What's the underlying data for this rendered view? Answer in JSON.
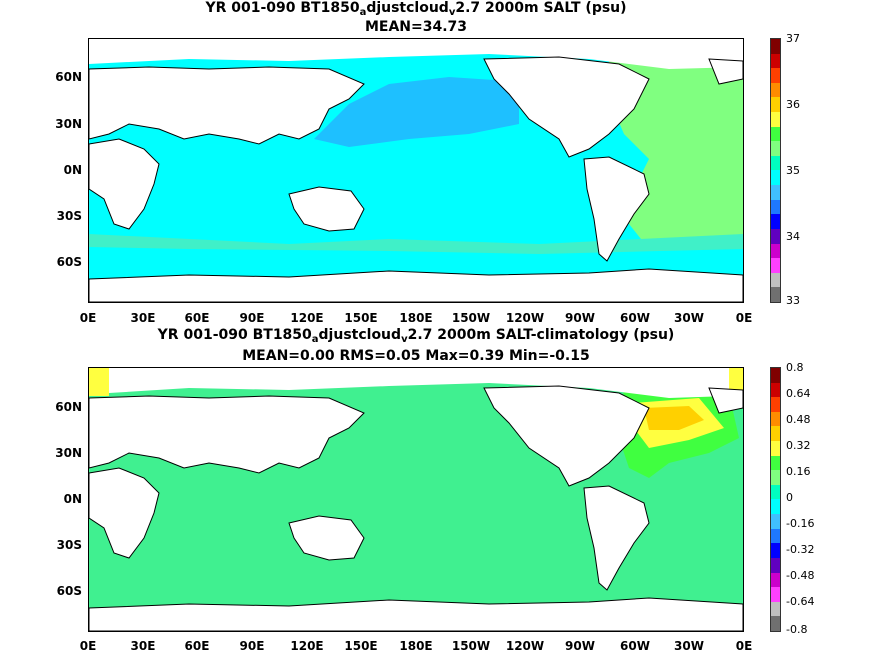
{
  "panels": [
    {
      "title_parts": [
        "YR 001-090 BT1850",
        "a",
        "djustcloud",
        "v",
        "2.7 2000m SALT (psu)"
      ],
      "subtitle": "MEAN=34.73",
      "colorbar_labels": [
        "37",
        "36",
        "35",
        "34",
        "33"
      ],
      "colors": {
        "ocean_main": "#00ffff",
        "ocean_north_pacific": "#1ec0ff",
        "ocean_atlantic": "#80ff80",
        "ocean_southern_band": "#00ffd0"
      }
    },
    {
      "title_parts": [
        "YR 001-090 BT1850",
        "a",
        "djustcloud",
        "v",
        "2.7 2000m SALT-climatology (psu)"
      ],
      "subtitle": "MEAN=0.00   RMS=0.05   Max=0.39   Min=-0.15",
      "colorbar_labels": [
        "0.8",
        "0.64",
        "0.48",
        "0.32",
        "0.16",
        "0",
        "-0.16",
        "-0.32",
        "-0.48",
        "-0.64",
        "-0.8"
      ],
      "colors": {
        "ocean_main": "#40f090",
        "ocean_positive": "#40ff40",
        "ocean_high": "#ffd700",
        "ocean_very_high": "#ffa500"
      }
    }
  ],
  "axes": {
    "y_ticks": [
      "60N",
      "30N",
      "0N",
      "30S",
      "60S"
    ],
    "x_ticks": [
      "0E",
      "30E",
      "60E",
      "90E",
      "120E",
      "150E",
      "180E",
      "150W",
      "120W",
      "90W",
      "60W",
      "30W",
      "0E"
    ]
  },
  "colorbar_palette": [
    "#7f0000",
    "#cc0000",
    "#ff4000",
    "#ff8c00",
    "#ffd000",
    "#ffff40",
    "#40ff40",
    "#80ff80",
    "#00ffc0",
    "#00ffff",
    "#40c0ff",
    "#1e78ff",
    "#0000ff",
    "#6000c0",
    "#cc00cc",
    "#ff40ff",
    "#c0c0c0",
    "#707070"
  ]
}
